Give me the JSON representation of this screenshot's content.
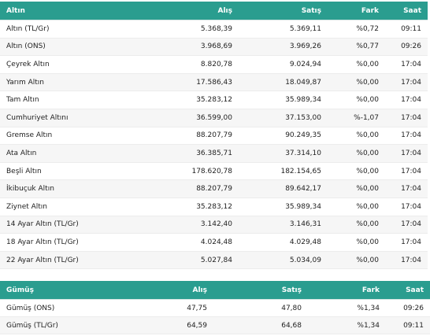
{
  "gold": {
    "headers": {
      "name": "Altın",
      "buy": "Alış",
      "sell": "Satış",
      "change": "Fark",
      "time": "Saat"
    },
    "rows": [
      {
        "name": "Altın (TL/Gr)",
        "buy": "5.368,39",
        "sell": "5.369,11",
        "change": "%0,72",
        "time": "09:11"
      },
      {
        "name": "Altın (ONS)",
        "buy": "3.968,69",
        "sell": "3.969,26",
        "change": "%0,77",
        "time": "09:26"
      },
      {
        "name": "Çeyrek Altın",
        "buy": "8.820,78",
        "sell": "9.024,94",
        "change": "%0,00",
        "time": "17:04"
      },
      {
        "name": "Yarım Altın",
        "buy": "17.586,43",
        "sell": "18.049,87",
        "change": "%0,00",
        "time": "17:04"
      },
      {
        "name": "Tam Altın",
        "buy": "35.283,12",
        "sell": "35.989,34",
        "change": "%0,00",
        "time": "17:04"
      },
      {
        "name": "Cumhuriyet Altını",
        "buy": "36.599,00",
        "sell": "37.153,00",
        "change": "%-1,07",
        "time": "17:04"
      },
      {
        "name": "Gremse Altın",
        "buy": "88.207,79",
        "sell": "90.249,35",
        "change": "%0,00",
        "time": "17:04"
      },
      {
        "name": "Ata Altın",
        "buy": "36.385,71",
        "sell": "37.314,10",
        "change": "%0,00",
        "time": "17:04"
      },
      {
        "name": "Beşli Altın",
        "buy": "178.620,78",
        "sell": "182.154,65",
        "change": "%0,00",
        "time": "17:04"
      },
      {
        "name": "İkibuçuk Altın",
        "buy": "88.207,79",
        "sell": "89.642,17",
        "change": "%0,00",
        "time": "17:04"
      },
      {
        "name": "Ziynet Altın",
        "buy": "35.283,12",
        "sell": "35.989,34",
        "change": "%0,00",
        "time": "17:04"
      },
      {
        "name": "14 Ayar Altın (TL/Gr)",
        "buy": "3.142,40",
        "sell": "3.146,31",
        "change": "%0,00",
        "time": "17:04"
      },
      {
        "name": "18 Ayar Altın (TL/Gr)",
        "buy": "4.024,48",
        "sell": "4.029,48",
        "change": "%0,00",
        "time": "17:04"
      },
      {
        "name": "22 Ayar Altın (TL/Gr)",
        "buy": "5.027,84",
        "sell": "5.034,09",
        "change": "%0,00",
        "time": "17:04"
      }
    ]
  },
  "silver": {
    "headers": {
      "name": "Gümüş",
      "buy": "Alış",
      "sell": "Satış",
      "change": "Fark",
      "time": "Saat"
    },
    "rows": [
      {
        "name": "Gümüş (ONS)",
        "buy": "47,75",
        "sell": "47,80",
        "change": "%1,34",
        "time": "09:26"
      },
      {
        "name": "Gümüş (TL/Gr)",
        "buy": "64,59",
        "sell": "64,68",
        "change": "%1,34",
        "time": "09:11"
      }
    ]
  },
  "colors": {
    "header_bg": "#2a9d8f",
    "header_text": "#ffffff",
    "row_alt": "#f6f6f6"
  }
}
